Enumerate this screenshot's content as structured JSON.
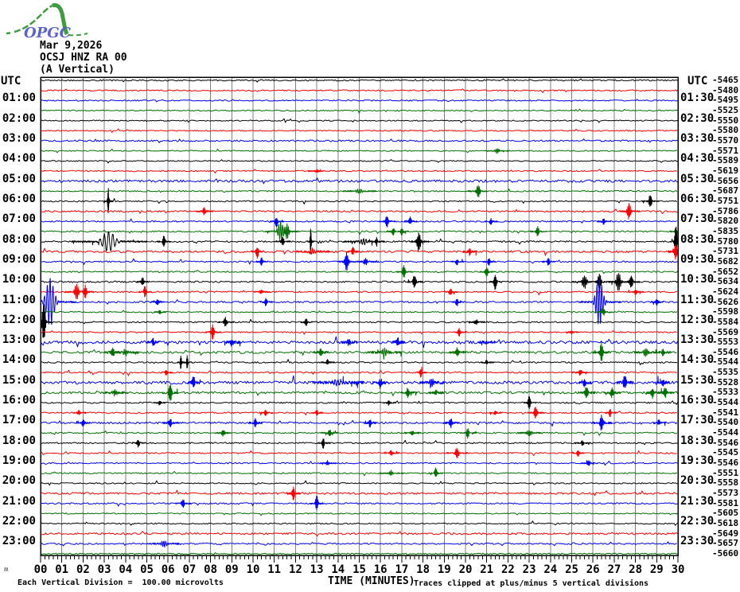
{
  "header": {
    "logo_text": "OPGC",
    "date": "Mar 9,2026",
    "station": "OCSJ HNZ RA 00",
    "component": "(A Vertical)",
    "utc_left": "UTC",
    "utc_right": "UTC"
  },
  "footer": {
    "scale_note": "Each Vertical Division =  100.00 microvolts",
    "xlabel": "TIME (MINUTES)",
    "clip_note": "Traces clipped at plus/minus 5 vertical divisions",
    "mini_glyph": "ʍ"
  },
  "chart_data": {
    "type": "line",
    "subtype": "helicorder-seismogram",
    "title": "OCSJ HNZ RA 00 (A Vertical) - Mar 9,2026",
    "xlabel": "TIME (MINUTES)",
    "x_range_minutes": [
      0,
      30
    ],
    "minutes_per_row": 30,
    "clip_divisions": 5,
    "grid": "vertical lines every 1 minute",
    "minute_labels": [
      "00",
      "01",
      "02",
      "03",
      "04",
      "05",
      "06",
      "07",
      "08",
      "09",
      "10",
      "11",
      "12",
      "13",
      "14",
      "15",
      "16",
      "17",
      "18",
      "19",
      "20",
      "21",
      "22",
      "23",
      "24",
      "25",
      "26",
      "27",
      "28",
      "29",
      "30"
    ],
    "colors": {
      "black": "#000000",
      "red": "#ff0000",
      "blue": "#0000ff",
      "green": "#006f00",
      "grid": "#7f7f7f",
      "frame": "#000000"
    },
    "rows": [
      {
        "t": "00:00",
        "left": "",
        "right": "",
        "v": -5465,
        "c": "black",
        "n": 0.8,
        "e": []
      },
      {
        "t": "00:30",
        "left": "",
        "right": "",
        "v": -5480,
        "c": "red",
        "n": 0.8,
        "e": []
      },
      {
        "t": "01:00",
        "left": "01:00",
        "right": "01:30",
        "v": -5495,
        "c": "blue",
        "n": 0.8,
        "e": []
      },
      {
        "t": "01:30",
        "left": "",
        "right": "",
        "v": -5525,
        "c": "green",
        "n": 0.7,
        "e": []
      },
      {
        "t": "02:00",
        "left": "02:00",
        "right": "02:30",
        "v": -5550,
        "c": "black",
        "n": 0.7,
        "e": []
      },
      {
        "t": "02:30",
        "left": "",
        "right": "",
        "v": -5580,
        "c": "red",
        "n": 0.7,
        "e": []
      },
      {
        "t": "03:00",
        "left": "03:00",
        "right": "03:30",
        "v": -5570,
        "c": "blue",
        "n": 1.0,
        "e": []
      },
      {
        "t": "03:30",
        "left": "",
        "right": "",
        "v": -5571,
        "c": "green",
        "n": 0.7,
        "e": [
          [
            21.5,
            3,
            0.15
          ]
        ]
      },
      {
        "t": "04:00",
        "left": "04:00",
        "right": "04:30",
        "v": -5589,
        "c": "black",
        "n": 0.7,
        "e": []
      },
      {
        "t": "04:30",
        "left": "",
        "right": "",
        "v": -5619,
        "c": "red",
        "n": 0.8,
        "e": [
          [
            13,
            2.5,
            0.1
          ]
        ]
      },
      {
        "t": "05:00",
        "left": "05:00",
        "right": "05:30",
        "v": -5656,
        "c": "blue",
        "n": 1.6,
        "e": []
      },
      {
        "t": "05:30",
        "left": "",
        "right": "",
        "v": -5687,
        "c": "green",
        "n": 0.8,
        "e": [
          [
            20.6,
            8,
            0.12
          ],
          [
            15,
            3,
            0.2
          ]
        ]
      },
      {
        "t": "06:00",
        "left": "06:00",
        "right": "06:30",
        "v": -5751,
        "c": "black",
        "n": 0.8,
        "e": [
          [
            3.2,
            -26,
            0.05
          ],
          [
            28.7,
            8,
            0.1
          ]
        ]
      },
      {
        "t": "06:30",
        "left": "",
        "right": "",
        "v": -5786,
        "c": "red",
        "n": 1.0,
        "e": [
          [
            7.7,
            5,
            0.1
          ],
          [
            27.7,
            10,
            0.12
          ]
        ]
      },
      {
        "t": "07:00",
        "left": "07:00",
        "right": "07:30",
        "v": -5820,
        "c": "blue",
        "n": 0.9,
        "e": [
          [
            11.1,
            -8,
            0.08
          ],
          [
            16.3,
            8,
            0.1
          ],
          [
            17.4,
            5,
            0.08
          ],
          [
            21.2,
            4,
            0.08
          ],
          [
            26.5,
            4,
            0.08
          ]
        ]
      },
      {
        "t": "07:30",
        "left": "",
        "right": "",
        "v": -5835,
        "c": "green",
        "n": 0.9,
        "e": [
          [
            11.3,
            12,
            0.2
          ],
          [
            11.6,
            10,
            0.15
          ],
          [
            16.6,
            5,
            0.08
          ],
          [
            17.0,
            5,
            0.08
          ],
          [
            23.4,
            6,
            0.1
          ],
          [
            29.9,
            4,
            0.08
          ]
        ]
      },
      {
        "t": "08:00",
        "left": "08:00",
        "right": "08:30",
        "v": -5780,
        "c": "black",
        "n": 1.0,
        "e": [
          [
            3.2,
            13,
            0.45
          ],
          [
            5.8,
            -8,
            0.08
          ],
          [
            11.4,
            5,
            0.1
          ],
          [
            12.7,
            -25,
            0.05
          ],
          [
            15.2,
            4,
            0.25
          ],
          [
            15.8,
            -8,
            0.06
          ],
          [
            17.8,
            13,
            0.12
          ],
          [
            29.9,
            -20,
            0.08
          ]
        ]
      },
      {
        "t": "08:30",
        "left": "",
        "right": "",
        "v": -5731,
        "c": "red",
        "n": 1.3,
        "e": [
          [
            10.2,
            -8,
            0.08
          ],
          [
            12.8,
            4,
            0.2
          ],
          [
            14.7,
            6,
            0.08
          ],
          [
            20.2,
            5,
            0.08
          ],
          [
            29.9,
            10,
            0.1
          ]
        ]
      },
      {
        "t": "09:00",
        "left": "09:00",
        "right": "09:30",
        "v": -5682,
        "c": "blue",
        "n": 0.9,
        "e": [
          [
            10.4,
            -5,
            0.08
          ],
          [
            14.4,
            12,
            0.12
          ],
          [
            15.3,
            4,
            0.15
          ],
          [
            19.6,
            4,
            0.08
          ],
          [
            21.1,
            5,
            0.08
          ],
          [
            23.9,
            5,
            0.08
          ]
        ]
      },
      {
        "t": "09:30",
        "left": "",
        "right": "",
        "v": -5652,
        "c": "green",
        "n": 0.8,
        "e": [
          [
            17.1,
            8,
            0.1
          ],
          [
            21.0,
            6,
            0.1
          ]
        ]
      },
      {
        "t": "10:00",
        "left": "10:00",
        "right": "10:30",
        "v": -5634,
        "c": "black",
        "n": 1.0,
        "e": [
          [
            4.8,
            6,
            0.08
          ],
          [
            17.6,
            9,
            0.1
          ],
          [
            21.4,
            10,
            0.08
          ],
          [
            25.6,
            8,
            0.15
          ],
          [
            26.3,
            10,
            0.12
          ],
          [
            27.2,
            12,
            0.15
          ],
          [
            27.8,
            8,
            0.1
          ]
        ]
      },
      {
        "t": "10:30",
        "left": "",
        "right": "",
        "v": -5624,
        "c": "red",
        "n": 0.9,
        "e": [
          [
            1.7,
            10,
            0.15
          ],
          [
            2.1,
            8,
            0.1
          ],
          [
            4.9,
            -8,
            0.08
          ],
          [
            10.4,
            3,
            0.1
          ],
          [
            19.3,
            4,
            0.08
          ],
          [
            28,
            3,
            0.1
          ]
        ]
      },
      {
        "t": "11:00",
        "left": "11:00",
        "right": "11:30",
        "v": -5626,
        "c": "blue",
        "n": 1.0,
        "e": [
          [
            0.45,
            30,
            0.3
          ],
          [
            5.5,
            4,
            0.08
          ],
          [
            10.6,
            5,
            0.08
          ],
          [
            19.6,
            5,
            0.08
          ],
          [
            26.3,
            30,
            0.25
          ],
          [
            29.0,
            5,
            0.08
          ]
        ]
      },
      {
        "t": "11:30",
        "left": "",
        "right": "",
        "v": -5598,
        "c": "green",
        "n": 0.8,
        "e": [
          [
            5.6,
            3,
            0.08
          ],
          [
            26.5,
            4,
            0.1
          ]
        ]
      },
      {
        "t": "12:00",
        "left": "12:00",
        "right": "12:30",
        "v": -5584,
        "c": "black",
        "n": 0.9,
        "e": [
          [
            0.15,
            -28,
            0.1
          ],
          [
            8.7,
            6,
            0.1
          ],
          [
            12.5,
            5,
            0.08
          ],
          [
            20.5,
            3,
            0.1
          ]
        ]
      },
      {
        "t": "12:30",
        "left": "",
        "right": "",
        "v": -5569,
        "c": "red",
        "n": 0.8,
        "e": [
          [
            8.1,
            10,
            0.1
          ],
          [
            19.7,
            6,
            0.08
          ],
          [
            25,
            3,
            0.08
          ]
        ]
      },
      {
        "t": "13:00",
        "left": "13:00",
        "right": "13:30",
        "v": -5553,
        "c": "blue",
        "n": 1.8,
        "e": [
          [
            5.3,
            5,
            0.08
          ],
          [
            9.0,
            4,
            0.1
          ],
          [
            14.5,
            4,
            0.1
          ],
          [
            16.8,
            6,
            0.08
          ],
          [
            21,
            3,
            0.1
          ]
        ]
      },
      {
        "t": "13:30",
        "left": "",
        "right": "",
        "v": -5546,
        "c": "green",
        "n": 1.4,
        "e": [
          [
            3.4,
            6,
            0.1
          ],
          [
            4.0,
            4,
            0.15
          ],
          [
            13.2,
            5,
            0.1
          ],
          [
            16.2,
            5,
            0.2
          ],
          [
            19.6,
            6,
            0.1
          ],
          [
            26.4,
            12,
            0.1
          ],
          [
            28.5,
            5,
            0.15
          ],
          [
            29.3,
            5,
            0.1
          ]
        ]
      },
      {
        "t": "14:00",
        "left": "14:00",
        "right": "14:30",
        "v": -5544,
        "c": "black",
        "n": 0.9,
        "e": [
          [
            6.6,
            8,
            0.06
          ],
          [
            6.9,
            8,
            0.06
          ],
          [
            13.5,
            3,
            0.08
          ],
          [
            21,
            3,
            0.08
          ]
        ]
      },
      {
        "t": "14:30",
        "left": "",
        "right": "",
        "v": -5535,
        "c": "red",
        "n": 0.9,
        "e": [
          [
            5.9,
            3,
            0.08
          ],
          [
            17.9,
            6,
            0.08
          ],
          [
            25.4,
            4,
            0.1
          ]
        ]
      },
      {
        "t": "15:00",
        "left": "15:00",
        "right": "15:30",
        "v": -5528,
        "c": "blue",
        "n": 1.8,
        "e": [
          [
            7.2,
            8,
            0.08
          ],
          [
            14,
            4,
            0.3
          ],
          [
            16.0,
            4,
            0.1
          ],
          [
            18.4,
            5,
            0.15
          ],
          [
            25.6,
            5,
            0.08
          ],
          [
            27.5,
            10,
            0.1
          ],
          [
            29.3,
            4,
            0.08
          ]
        ]
      },
      {
        "t": "15:30",
        "left": "",
        "right": "",
        "v": -5533,
        "c": "green",
        "n": 1.4,
        "e": [
          [
            3.5,
            4,
            0.15
          ],
          [
            6.1,
            -12,
            0.1
          ],
          [
            17.3,
            6,
            0.1
          ],
          [
            18.6,
            4,
            0.1
          ],
          [
            25.7,
            8,
            0.1
          ],
          [
            26.9,
            6,
            0.1
          ],
          [
            28.8,
            -7,
            0.08
          ],
          [
            29.4,
            6,
            0.1
          ]
        ]
      },
      {
        "t": "16:00",
        "left": "16:00",
        "right": "16:30",
        "v": -5544,
        "c": "black",
        "n": 0.9,
        "e": [
          [
            5.6,
            3,
            0.08
          ],
          [
            16.4,
            3,
            0.08
          ],
          [
            23.0,
            -9,
            0.08
          ]
        ]
      },
      {
        "t": "16:30",
        "left": "",
        "right": "",
        "v": -5541,
        "c": "red",
        "n": 0.9,
        "e": [
          [
            1.8,
            4,
            0.08
          ],
          [
            10.6,
            4,
            0.08
          ],
          [
            13.0,
            4,
            0.08
          ],
          [
            21.4,
            3,
            0.08
          ],
          [
            23.3,
            8,
            0.1
          ],
          [
            26.8,
            6,
            0.08
          ]
        ]
      },
      {
        "t": "17:00",
        "left": "17:00",
        "right": "17:30",
        "v": -5540,
        "c": "blue",
        "n": 1.2,
        "e": [
          [
            2.0,
            4,
            0.08
          ],
          [
            6.1,
            5,
            0.1
          ],
          [
            10.1,
            6,
            0.08
          ],
          [
            15.5,
            5,
            0.08
          ],
          [
            19.3,
            6,
            0.1
          ],
          [
            26.4,
            10,
            0.12
          ],
          [
            29.1,
            5,
            0.08
          ]
        ]
      },
      {
        "t": "17:30",
        "left": "",
        "right": "",
        "v": -5544,
        "c": "green",
        "n": 0.9,
        "e": [
          [
            8.6,
            4,
            0.1
          ],
          [
            13.6,
            4,
            0.1
          ],
          [
            17.5,
            3,
            0.1
          ],
          [
            20.1,
            -6,
            0.1
          ],
          [
            23,
            4,
            0.15
          ]
        ]
      },
      {
        "t": "18:00",
        "left": "18:00",
        "right": "18:30",
        "v": -5546,
        "c": "black",
        "n": 0.9,
        "e": [
          [
            4.6,
            5,
            0.08
          ],
          [
            13.3,
            7,
            0.08
          ],
          [
            25.5,
            3,
            0.1
          ]
        ]
      },
      {
        "t": "18:30",
        "left": "",
        "right": "",
        "v": -5545,
        "c": "red",
        "n": 0.8,
        "e": [
          [
            16.5,
            3,
            0.1
          ],
          [
            19.6,
            6,
            0.12
          ],
          [
            25.3,
            4,
            0.08
          ]
        ]
      },
      {
        "t": "19:00",
        "left": "19:00",
        "right": "19:30",
        "v": -5546,
        "c": "blue",
        "n": 0.8,
        "e": [
          [
            13.5,
            3,
            0.1
          ],
          [
            25.8,
            4,
            0.1
          ]
        ]
      },
      {
        "t": "19:30",
        "left": "",
        "right": "",
        "v": -5551,
        "c": "green",
        "n": 0.8,
        "e": [
          [
            16.5,
            3,
            0.15
          ],
          [
            18.6,
            7,
            0.08
          ]
        ]
      },
      {
        "t": "20:00",
        "left": "20:00",
        "right": "20:30",
        "v": -5558,
        "c": "black",
        "n": 0.8,
        "e": []
      },
      {
        "t": "20:30",
        "left": "",
        "right": "",
        "v": -5573,
        "c": "red",
        "n": 1.2,
        "e": [
          [
            11.9,
            9,
            0.08
          ]
        ]
      },
      {
        "t": "21:00",
        "left": "21:00",
        "right": "21:30",
        "v": -5581,
        "c": "blue",
        "n": 0.9,
        "e": [
          [
            6.7,
            5,
            0.1
          ],
          [
            13.0,
            -10,
            0.08
          ]
        ]
      },
      {
        "t": "21:30",
        "left": "",
        "right": "",
        "v": -5605,
        "c": "green",
        "n": 0.7,
        "e": []
      },
      {
        "t": "22:00",
        "left": "22:00",
        "right": "22:30",
        "v": -5618,
        "c": "black",
        "n": 0.8,
        "e": []
      },
      {
        "t": "22:30",
        "left": "",
        "right": "",
        "v": -5649,
        "c": "red",
        "n": 1.2,
        "e": []
      },
      {
        "t": "23:00",
        "left": "23:00",
        "right": "23:30",
        "v": -5657,
        "c": "blue",
        "n": 0.9,
        "e": [
          [
            5.8,
            4,
            0.2
          ]
        ]
      },
      {
        "t": "23:30",
        "left": "",
        "right": "",
        "v": -5660,
        "c": "green",
        "n": 0.8,
        "e": []
      }
    ]
  }
}
